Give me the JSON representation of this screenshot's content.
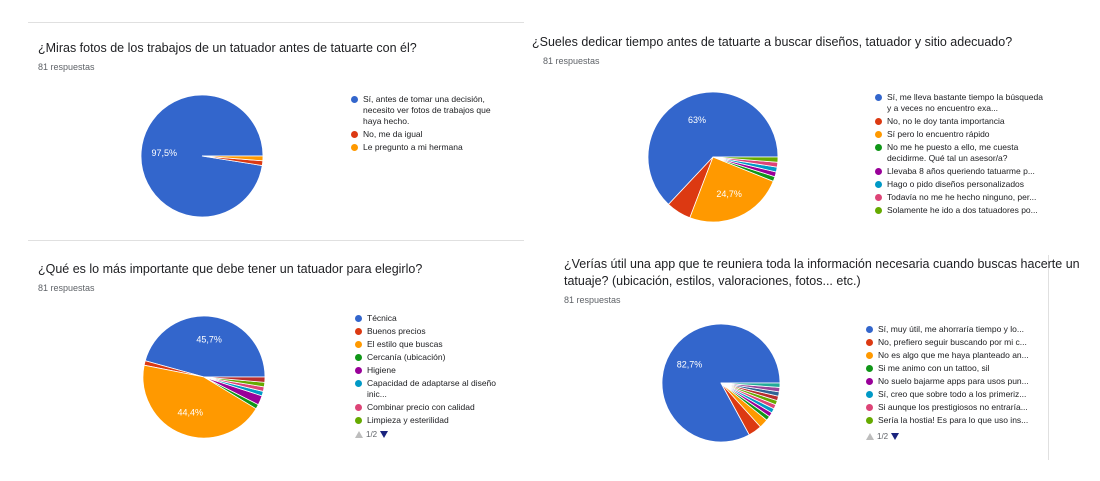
{
  "chart_data": [
    {
      "type": "pie",
      "title": "¿Miras fotos de los trabajos de un tatuador antes de tatuarte con él?",
      "responses": "81 respuestas",
      "slices": [
        {
          "label": "Sí, antes de tomar una decisión, necesito ver fotos de trabajos que haya hecho.",
          "value": 97.5,
          "color": "#3366cc",
          "pct_label": "97,5%"
        },
        {
          "label": "No, me da igual",
          "value": 1.25,
          "color": "#dc3912",
          "pct_label": ""
        },
        {
          "label": "Le pregunto a mi hermana",
          "value": 1.25,
          "color": "#ff9900",
          "pct_label": ""
        }
      ]
    },
    {
      "type": "pie",
      "title": "¿Sueles dedicar tiempo antes de tatuarte a buscar diseños, tatuador y sitio adecuado?",
      "responses": "81 respuestas",
      "slices": [
        {
          "label": "Sí, me lleva bastante tiempo la búsqueda y a veces no encuentro exa...",
          "value": 63,
          "color": "#3366cc",
          "pct_label": "63%"
        },
        {
          "label": "No, no le doy tanta importancia",
          "value": 6.2,
          "color": "#dc3912",
          "pct_label": ""
        },
        {
          "label": "Sí pero lo encuentro rápido",
          "value": 24.7,
          "color": "#ff9900",
          "pct_label": "24,7%"
        },
        {
          "label": "No me he puesto a ello, me cuesta decidirme. Qué tal un asesor/a?",
          "value": 1.2,
          "color": "#109618",
          "pct_label": ""
        },
        {
          "label": "Llevaba 8 años queriendo tatuarme p...",
          "value": 1.2,
          "color": "#990099",
          "pct_label": ""
        },
        {
          "label": "Hago o pido diseños personalizados",
          "value": 1.2,
          "color": "#0099c6",
          "pct_label": ""
        },
        {
          "label": "Todavía no me he hecho ninguno, per...",
          "value": 1.2,
          "color": "#dd4477",
          "pct_label": ""
        },
        {
          "label": "Solamente he ido a dos tatuadores po...",
          "value": 1.3,
          "color": "#66aa00",
          "pct_label": ""
        }
      ]
    },
    {
      "type": "pie",
      "title": "¿Qué es lo más importante que debe tener un tatuador para elegirlo?",
      "responses": "81 respuestas",
      "pager": "1/2",
      "slices": [
        {
          "label": "Técnica",
          "value": 45.7,
          "color": "#3366cc",
          "pct_label": "45,7%"
        },
        {
          "label": "Buenos precios",
          "value": 1.2,
          "color": "#dc3912",
          "pct_label": ""
        },
        {
          "label": "El estilo que buscas",
          "value": 44.4,
          "color": "#ff9900",
          "pct_label": "44,4%"
        },
        {
          "label": "Cercanía (ubicación)",
          "value": 1.2,
          "color": "#109618",
          "pct_label": ""
        },
        {
          "label": "Higiene",
          "value": 2.5,
          "color": "#990099",
          "pct_label": ""
        },
        {
          "label": "Capacidad de adaptarse al diseño inic...",
          "value": 1.2,
          "color": "#0099c6",
          "pct_label": ""
        },
        {
          "label": "Combinar precio con calidad",
          "value": 1.2,
          "color": "#dd4477",
          "pct_label": ""
        },
        {
          "label": "Limpieza y esterilidad",
          "value": 1.2,
          "color": "#66aa00",
          "pct_label": ""
        },
        {
          "label": "",
          "value": 1.4,
          "color": "#b82e2e",
          "pct_label": ""
        }
      ]
    },
    {
      "type": "pie",
      "title": "¿Verías útil una app que te reuniera toda la información necesaria cuando buscas hacerte un tatuaje? (ubicación, estilos, valoraciones, fotos... etc.)",
      "title_lines": [
        "¿Verías útil una app que te reuniera toda la información necesaria cuando buscas hacerte un",
        "tatuaje? (ubicación, estilos, valoraciones, fotos... etc.)"
      ],
      "responses": "81 respuestas",
      "pager": "1/2",
      "slices": [
        {
          "label": "Sí, muy útil, me ahorraría tiempo y lo...",
          "value": 82.7,
          "color": "#3366cc",
          "pct_label": "82,7%"
        },
        {
          "label": "No, prefiero seguir buscando por mi c...",
          "value": 3.7,
          "color": "#dc3912",
          "pct_label": ""
        },
        {
          "label": "No es algo que me haya planteado an...",
          "value": 2.5,
          "color": "#ff9900",
          "pct_label": ""
        },
        {
          "label": "Si me animo con un tattoo, sil",
          "value": 1.2,
          "color": "#109618",
          "pct_label": ""
        },
        {
          "label": "No suelo bajarme apps para usos pun...",
          "value": 1.2,
          "color": "#990099",
          "pct_label": ""
        },
        {
          "label": "Sí, creo que sobre todo a los primeriz...",
          "value": 1.2,
          "color": "#0099c6",
          "pct_label": ""
        },
        {
          "label": "Si aunque los prestigiosos no entraría...",
          "value": 1.2,
          "color": "#dd4477",
          "pct_label": ""
        },
        {
          "label": "Sería la hostia! Es para lo que uso ins...",
          "value": 1.2,
          "color": "#66aa00",
          "pct_label": ""
        },
        {
          "label": "",
          "value": 1.2,
          "color": "#b82e2e",
          "pct_label": ""
        },
        {
          "label": "",
          "value": 1.2,
          "color": "#316395",
          "pct_label": ""
        },
        {
          "label": "",
          "value": 1.2,
          "color": "#994499",
          "pct_label": ""
        },
        {
          "label": "",
          "value": 1.2,
          "color": "#22aa99",
          "pct_label": ""
        }
      ]
    }
  ]
}
